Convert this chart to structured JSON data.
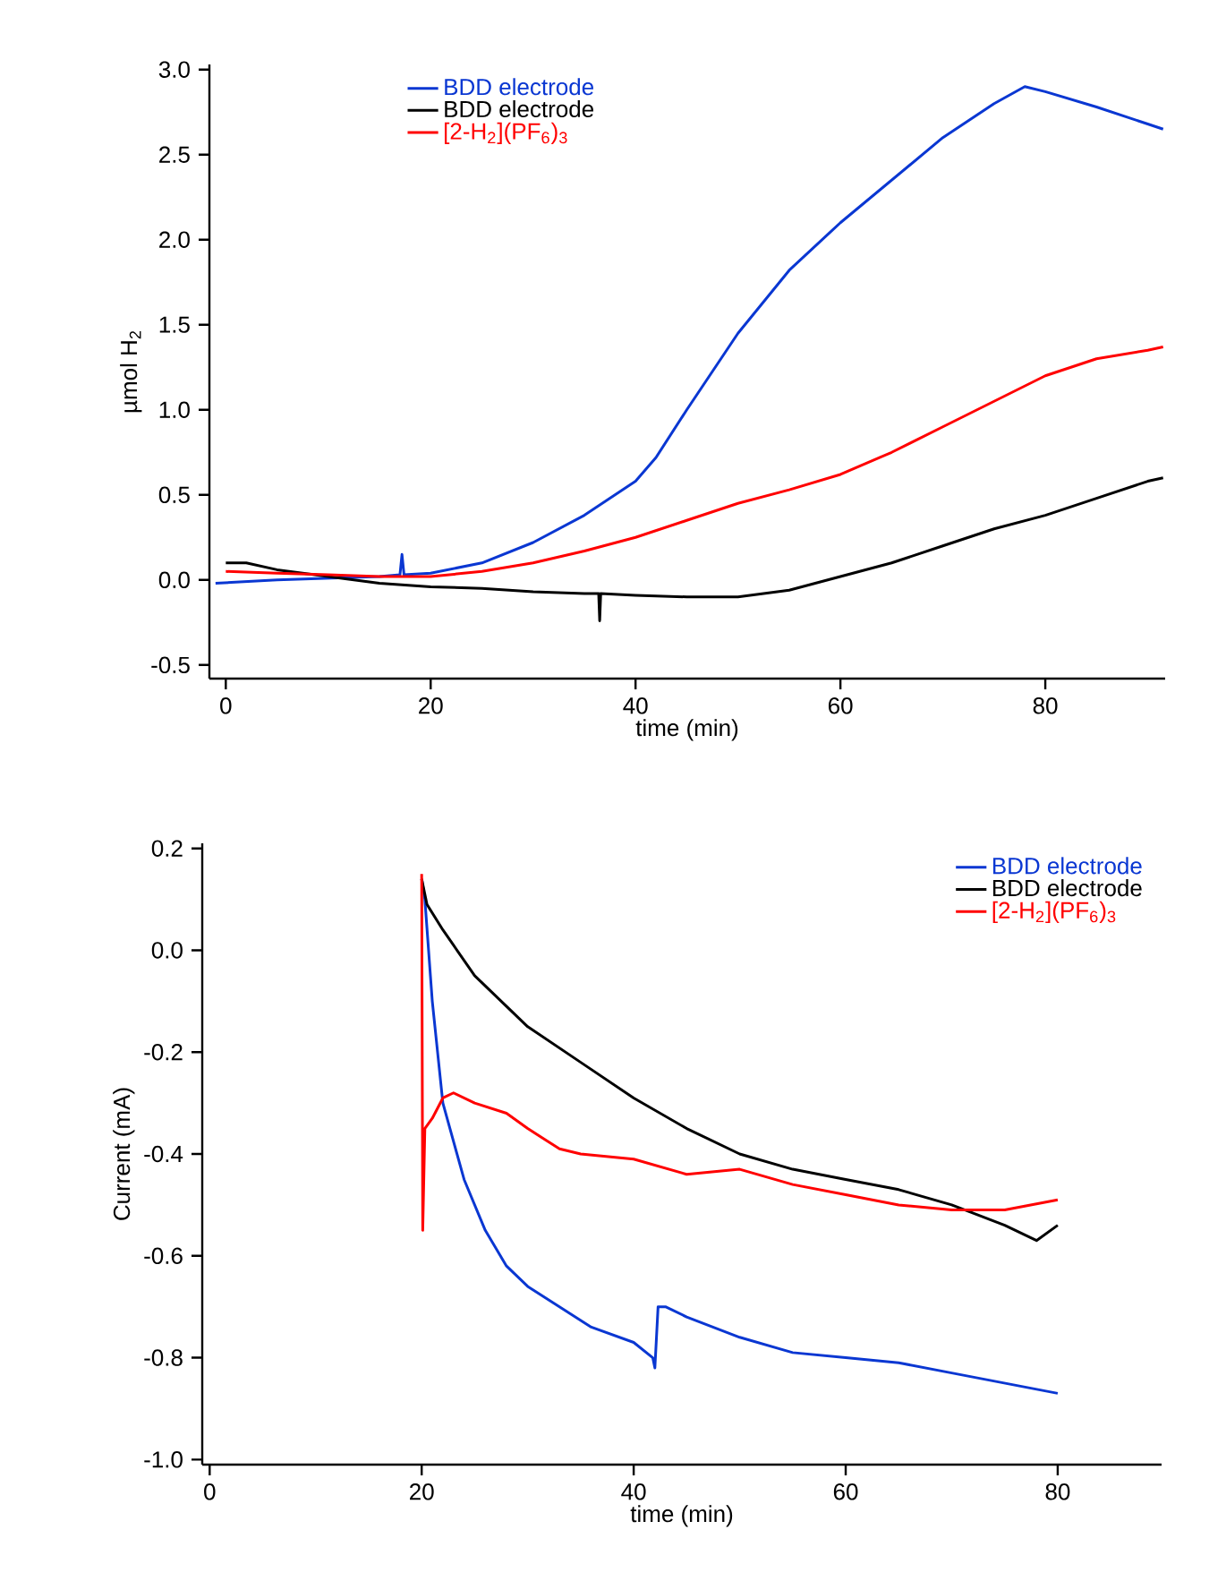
{
  "chart_data": [
    {
      "type": "line",
      "xlabel": "time (min)",
      "ylabel": "µmol H$_{2}$",
      "xlim": [
        -1.6,
        91.7
      ],
      "ylim": [
        -0.58,
        3.03
      ],
      "xticks": [
        0,
        20,
        40,
        60,
        80
      ],
      "yticks": [
        {
          "value": -0.5,
          "label": "-0.5"
        },
        {
          "value": 0,
          "label": "0.0"
        },
        {
          "value": 0.5,
          "label": "0.5"
        },
        {
          "value": 1,
          "label": "1.0"
        },
        {
          "value": 1.5,
          "label": "1.5"
        },
        {
          "value": 2,
          "label": "2.0"
        },
        {
          "value": 2.5,
          "label": "2.5"
        },
        {
          "value": 3,
          "label": "3.0"
        }
      ],
      "legend": "top left",
      "series": [
        {
          "name": "BDD electrode",
          "color": "#0a37d2",
          "x": [
            -1,
            5,
            10,
            15,
            17,
            17.2,
            17.4,
            20,
            25,
            30,
            35,
            40,
            42,
            45,
            50,
            55,
            60,
            65,
            70,
            75,
            78,
            80,
            85,
            90,
            91.5
          ],
          "values": [
            -0.02,
            0.0,
            0.01,
            0.02,
            0.03,
            0.15,
            0.03,
            0.04,
            0.1,
            0.22,
            0.38,
            0.58,
            0.72,
            1.0,
            1.45,
            1.82,
            2.1,
            2.35,
            2.6,
            2.8,
            2.9,
            2.87,
            2.78,
            2.68,
            2.65
          ]
        },
        {
          "name": "BDD electrode",
          "color": "#000000",
          "x": [
            0,
            2,
            5,
            10,
            15,
            20,
            25,
            30,
            35,
            36.4,
            36.5,
            36.6,
            40,
            45,
            50,
            55,
            60,
            65,
            70,
            75,
            80,
            85,
            90,
            91.5
          ],
          "values": [
            0.1,
            0.1,
            0.06,
            0.02,
            -0.02,
            -0.04,
            -0.05,
            -0.07,
            -0.08,
            -0.08,
            -0.24,
            -0.08,
            -0.09,
            -0.1,
            -0.1,
            -0.06,
            0.02,
            0.1,
            0.2,
            0.3,
            0.38,
            0.48,
            0.58,
            0.6
          ]
        },
        {
          "name": "[2-H$_{2}$](PF$_{6}$)$_{3}$",
          "color": "#ff0000",
          "x": [
            0,
            5,
            10,
            15,
            20,
            25,
            30,
            35,
            40,
            45,
            50,
            55,
            60,
            65,
            70,
            75,
            80,
            85,
            90,
            91.5
          ],
          "values": [
            0.05,
            0.04,
            0.03,
            0.02,
            0.02,
            0.05,
            0.1,
            0.17,
            0.25,
            0.35,
            0.45,
            0.53,
            0.62,
            0.75,
            0.9,
            1.05,
            1.2,
            1.3,
            1.35,
            1.37
          ]
        }
      ]
    },
    {
      "type": "line",
      "xlabel": "time (min)",
      "ylabel": "Current (mA)",
      "xlim": [
        -0.7,
        89.8
      ],
      "ylim": [
        -1.01,
        0.21
      ],
      "xticks": [
        0,
        20,
        40,
        60,
        80
      ],
      "yticks": [
        {
          "value": -1,
          "label": "-1.0"
        },
        {
          "value": -0.8,
          "label": "-0.8"
        },
        {
          "value": -0.6,
          "label": "-0.6"
        },
        {
          "value": -0.4,
          "label": "-0.4"
        },
        {
          "value": -0.2,
          "label": "-0.2"
        },
        {
          "value": 0,
          "label": "0.0"
        },
        {
          "value": 0.2,
          "label": "0.2"
        }
      ],
      "legend": "top right",
      "series": [
        {
          "name": "BDD electrode",
          "color": "#0a37d2",
          "x": [
            20,
            20.3,
            21,
            22,
            24,
            26,
            28,
            30,
            33,
            36,
            40,
            41.8,
            42,
            42.3,
            43,
            45,
            50,
            55,
            60,
            65,
            70,
            75,
            80
          ],
          "values": [
            0.14,
            0.1,
            -0.1,
            -0.3,
            -0.45,
            -0.55,
            -0.62,
            -0.66,
            -0.7,
            -0.74,
            -0.77,
            -0.8,
            -0.82,
            -0.7,
            -0.7,
            -0.72,
            -0.76,
            -0.79,
            -0.8,
            -0.81,
            -0.83,
            -0.85,
            -0.87
          ]
        },
        {
          "name": "BDD electrode",
          "color": "#000000",
          "x": [
            20,
            20.5,
            22,
            25,
            30,
            35,
            40,
            45,
            50,
            55,
            60,
            65,
            70,
            75,
            78,
            80
          ],
          "values": [
            0.14,
            0.09,
            0.04,
            -0.05,
            -0.15,
            -0.22,
            -0.29,
            -0.35,
            -0.4,
            -0.43,
            -0.45,
            -0.47,
            -0.5,
            -0.54,
            -0.57,
            -0.54
          ]
        },
        {
          "name": "[2-H$_{2}$](PF$_{6}$)$_{3}$",
          "color": "#ff0000",
          "x": [
            20,
            20.1,
            20.3,
            21,
            22,
            23,
            25,
            28,
            30,
            33,
            35,
            40,
            45,
            50,
            55,
            60,
            65,
            70,
            75,
            80
          ],
          "values": [
            0.15,
            -0.55,
            -0.35,
            -0.33,
            -0.29,
            -0.28,
            -0.3,
            -0.32,
            -0.35,
            -0.39,
            -0.4,
            -0.41,
            -0.44,
            -0.43,
            -0.46,
            -0.48,
            -0.5,
            -0.51,
            -0.51,
            -0.49
          ]
        }
      ]
    }
  ]
}
